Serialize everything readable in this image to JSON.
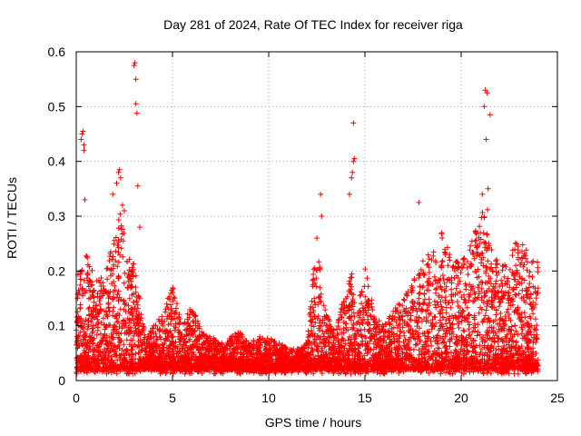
{
  "chart_data": {
    "type": "scatter",
    "title": "Day 281 of 2024, Rate Of TEC Index for receiver riga",
    "xlabel": "GPS time / hours",
    "ylabel": "ROTI / TECUs",
    "xlim": [
      0,
      25
    ],
    "ylim": [
      0,
      0.6
    ],
    "x_ticks": [
      0,
      5,
      10,
      15,
      20,
      25
    ],
    "x_tick_labels": [
      "0",
      "5",
      "10",
      "15",
      "20",
      "25"
    ],
    "y_ticks": [
      0,
      0.1,
      0.2,
      0.3,
      0.4,
      0.5,
      0.6
    ],
    "y_tick_labels": [
      "0",
      "0.1",
      "0.2",
      "0.3",
      "0.4",
      "0.5",
      "0.6"
    ],
    "grid": true,
    "marker": "plus",
    "color": "#ff0000",
    "envelope": {
      "x": [
        0,
        0.5,
        1,
        1.5,
        2,
        2.3,
        2.6,
        3,
        3.3,
        3.6,
        4,
        4.5,
        5,
        5.5,
        6,
        6.5,
        7,
        7.5,
        8,
        8.5,
        9,
        9.5,
        10,
        10.5,
        11,
        11.5,
        12,
        12.3,
        12.6,
        13,
        13.5,
        14,
        14.3,
        14.6,
        15,
        15.5,
        16,
        16.5,
        17,
        17.5,
        18,
        18.5,
        19,
        19.5,
        20,
        20.5,
        21,
        21.3,
        21.6,
        22,
        22.5,
        23,
        23.5,
        24
      ],
      "y": [
        0.2,
        0.24,
        0.18,
        0.2,
        0.28,
        0.32,
        0.25,
        0.22,
        0.15,
        0.08,
        0.1,
        0.12,
        0.18,
        0.1,
        0.14,
        0.09,
        0.08,
        0.07,
        0.08,
        0.09,
        0.07,
        0.08,
        0.08,
        0.07,
        0.06,
        0.06,
        0.07,
        0.2,
        0.22,
        0.12,
        0.09,
        0.18,
        0.2,
        0.12,
        0.22,
        0.12,
        0.1,
        0.13,
        0.16,
        0.18,
        0.22,
        0.24,
        0.28,
        0.22,
        0.22,
        0.25,
        0.3,
        0.33,
        0.26,
        0.2,
        0.24,
        0.26,
        0.24,
        0.22
      ],
      "floor": 0.02
    },
    "outliers": {
      "x": [
        0.25,
        0.3,
        0.35,
        0.4,
        0.4,
        0.45,
        1.9,
        2.1,
        2.2,
        2.25,
        2.3,
        2.4,
        2.5,
        3.0,
        3.05,
        3.1,
        3.1,
        3.15,
        3.2,
        3.3,
        12.5,
        12.7,
        12.75,
        14.2,
        14.3,
        14.35,
        14.4,
        14.4,
        14.45,
        17.8,
        21.1,
        21.2,
        21.25,
        21.3,
        21.35,
        21.4,
        21.5
      ],
      "y": [
        0.44,
        0.45,
        0.455,
        0.42,
        0.43,
        0.33,
        0.34,
        0.36,
        0.38,
        0.385,
        0.37,
        0.32,
        0.31,
        0.575,
        0.58,
        0.55,
        0.505,
        0.488,
        0.355,
        0.28,
        0.26,
        0.34,
        0.3,
        0.34,
        0.37,
        0.38,
        0.4,
        0.47,
        0.405,
        0.325,
        0.34,
        0.5,
        0.53,
        0.44,
        0.525,
        0.35,
        0.485
      ]
    }
  }
}
